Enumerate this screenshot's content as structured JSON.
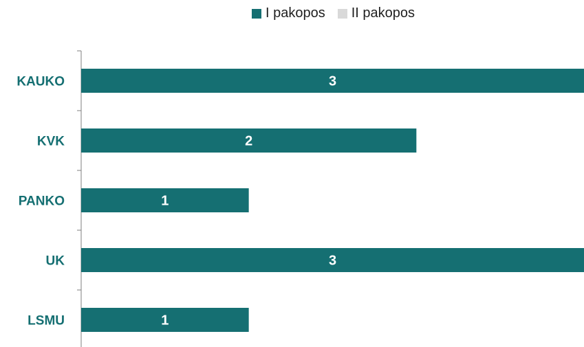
{
  "chart_data": {
    "type": "bar",
    "orientation": "horizontal",
    "categories": [
      "KAUKO",
      "KVK",
      "PANKO",
      "UK",
      "LSMU"
    ],
    "series": [
      {
        "name": "I pakopos",
        "values": [
          3,
          2,
          1,
          3,
          1
        ],
        "color": "#156f72"
      },
      {
        "name": "II pakopos",
        "values": [
          0,
          0,
          0,
          0,
          0
        ],
        "color": "#d9d9d9"
      }
    ],
    "xlim": [
      0,
      3
    ],
    "legend_position": "top",
    "grid": false,
    "category_label_color": "#156f72"
  }
}
